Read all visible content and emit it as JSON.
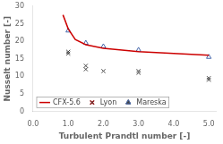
{
  "chart_data": {
    "type": "scatter",
    "xlabel": "Turbulent Prandtl number [-]",
    "ylabel": "Nusselt number [-]",
    "xlim": [
      0.0,
      5.2
    ],
    "ylim": [
      0,
      30
    ],
    "xticks": [
      {
        "value": 0.0,
        "label": "0.0"
      },
      {
        "value": 1.0,
        "label": "1.0"
      },
      {
        "value": 2.0,
        "label": "2.0"
      },
      {
        "value": 3.0,
        "label": "3.0"
      },
      {
        "value": 4.0,
        "label": "4.0"
      },
      {
        "value": 5.0,
        "label": "5.0"
      }
    ],
    "yticks": [
      0,
      5,
      10,
      15,
      20,
      25,
      30
    ],
    "grid": false,
    "legend": "lower left",
    "series": [
      {
        "name": "CFX-5.6",
        "type": "line",
        "line_style": "solid",
        "color": "#cc0000",
        "x": [
          0.85,
          1.0,
          1.2,
          1.5,
          2.0,
          3.0,
          5.0
        ],
        "values": [
          27.5,
          23.5,
          20.5,
          19.0,
          18.0,
          17.0,
          16.0
        ]
      },
      {
        "name": "Lyon",
        "type": "scatter",
        "marker": "x",
        "color": "#444444",
        "x": [
          1.0,
          1.0,
          1.5,
          1.5,
          2.0,
          3.0,
          3.0,
          5.0,
          5.0
        ],
        "values": [
          16.5,
          17.0,
          12.0,
          13.0,
          11.5,
          11.0,
          11.5,
          9.0,
          9.5
        ]
      },
      {
        "name": "Mareska",
        "type": "scatter",
        "marker": "triangle",
        "color": "#4466aa",
        "x": [
          1.0,
          1.5,
          2.0,
          3.0,
          5.0
        ],
        "values": [
          23.0,
          19.5,
          18.5,
          17.5,
          15.5
        ]
      }
    ]
  }
}
